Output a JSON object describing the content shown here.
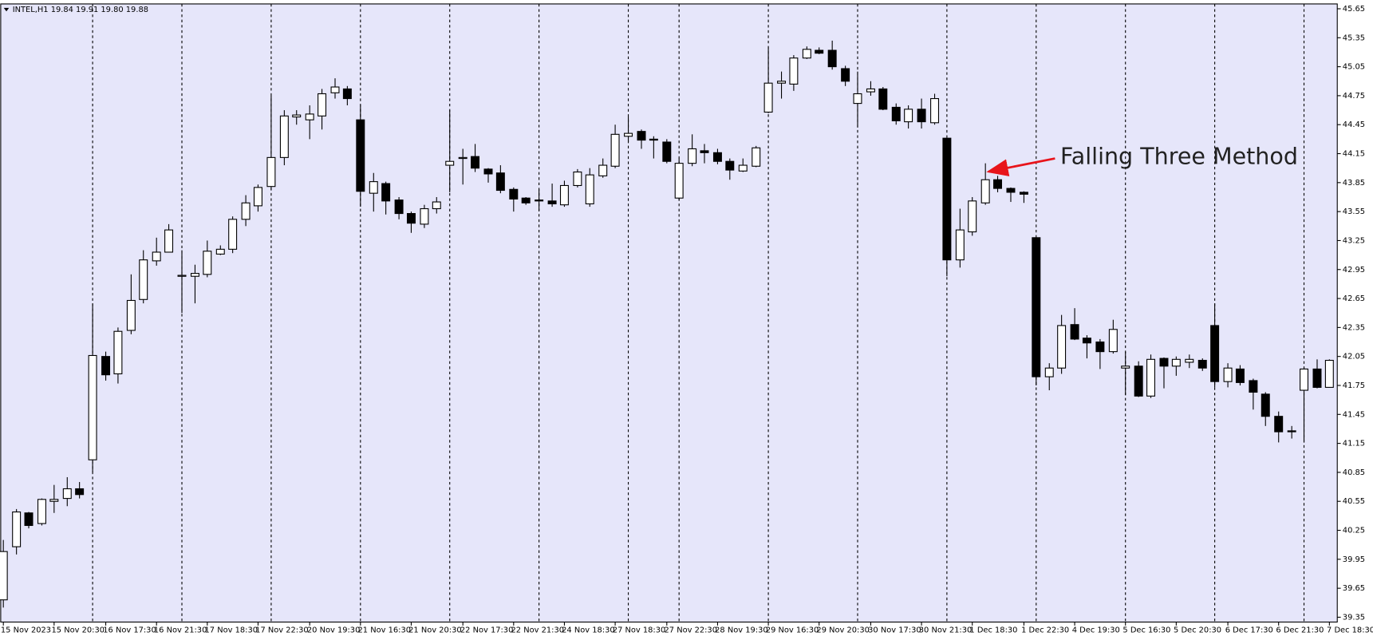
{
  "chart_data": {
    "type": "candlestick",
    "title": "INTEL,H1  19.84 19.91 19.80 19.88",
    "annotation": "Falling Three Method",
    "background": "#e6e6fa",
    "up_color": "#ffffff",
    "down_color": "#000000",
    "annotation_color": "#e8141b",
    "ylim": [
      39.3,
      45.7
    ],
    "yticks": [
      45.65,
      45.35,
      45.05,
      44.75,
      44.45,
      44.15,
      43.85,
      43.55,
      43.25,
      42.95,
      42.65,
      42.35,
      42.05,
      41.75,
      41.45,
      41.15,
      40.85,
      40.55,
      40.25,
      39.95,
      39.65,
      39.35
    ],
    "categories": [
      "15 Nov 2023",
      null,
      null,
      null,
      "15 Nov 20:30",
      null,
      null,
      null,
      "16 Nov 17:30",
      null,
      null,
      null,
      "16 Nov 21:30",
      null,
      null,
      null,
      "17 Nov 18:30",
      null,
      null,
      null,
      "17 Nov 22:30",
      null,
      null,
      null,
      "20 Nov 19:30",
      null,
      null,
      null,
      "21 Nov 16:30",
      null,
      null,
      null,
      "21 Nov 20:30",
      null,
      null,
      null,
      "22 Nov 17:30",
      null,
      null,
      null,
      "22 Nov 21:30",
      null,
      null,
      null,
      "24 Nov 18:30",
      null,
      null,
      null,
      "27 Nov 18:30",
      null,
      null,
      null,
      "27 Nov 22:30",
      null,
      null,
      null,
      "28 Nov 19:30",
      null,
      null,
      null,
      "29 Nov 16:30",
      null,
      null,
      null,
      "29 Nov 20:30",
      null,
      null,
      null,
      "30 Nov 17:30",
      null,
      null,
      null,
      "30 Nov 21:30",
      null,
      null,
      null,
      "1 Dec 18:30",
      null,
      null,
      null,
      "1 Dec 22:30",
      null,
      null,
      null,
      "4 Dec 19:30",
      null,
      null,
      null,
      "5 Dec 16:30",
      null,
      null,
      null,
      "5 Dec 20:30",
      null,
      null,
      null,
      "6 Dec 17:30",
      null,
      null,
      null,
      "6 Dec 21:30",
      null,
      null,
      null,
      "7 Dec 18:30"
    ],
    "open": [
      39.53,
      40.08,
      40.43,
      40.32,
      40.55,
      40.58,
      40.68,
      40.98,
      42.05,
      41.87,
      42.32,
      42.64,
      43.04,
      43.13,
      42.88,
      42.88,
      42.9,
      43.11,
      43.16,
      43.47,
      43.61,
      43.81,
      44.11,
      44.53,
      44.5,
      44.54,
      44.78,
      44.82,
      44.5,
      43.74,
      43.84,
      43.67,
      43.53,
      43.42,
      43.58,
      44.03,
      44.1,
      44.12,
      43.99,
      43.95,
      43.78,
      43.69,
      43.67,
      43.66,
      43.62,
      43.82,
      43.63,
      43.92,
      44.02,
      44.33,
      44.38,
      44.3,
      44.27,
      43.69,
      44.05,
      44.18,
      44.16,
      44.07,
      43.97,
      44.02,
      44.58,
      44.88,
      44.87,
      45.14,
      45.22,
      45.22,
      45.03,
      44.67,
      44.79,
      44.82,
      44.63,
      44.48,
      44.61,
      44.47,
      44.31,
      43.05,
      43.34,
      43.64,
      43.88,
      43.79,
      43.75,
      43.28,
      41.84,
      41.93,
      42.38,
      42.24,
      42.2,
      42.1,
      41.93,
      41.95,
      41.64,
      42.03,
      41.95,
      41.99,
      42.01,
      42.37,
      41.79,
      41.92,
      41.8,
      41.66,
      41.43,
      41.28,
      41.7,
      41.92,
      41.73
    ],
    "high": [
      40.15,
      40.47,
      40.44,
      40.58,
      40.72,
      40.8,
      40.75,
      42.6,
      42.1,
      42.35,
      42.9,
      43.15,
      43.28,
      43.42,
      43.15,
      43.0,
      43.25,
      43.2,
      43.5,
      43.72,
      43.83,
      44.75,
      44.6,
      44.6,
      44.65,
      44.82,
      44.93,
      44.85,
      44.65,
      43.95,
      43.86,
      43.7,
      43.55,
      43.62,
      43.7,
      44.6,
      44.2,
      44.25,
      44.0,
      44.03,
      43.8,
      43.7,
      43.78,
      43.84,
      43.87,
      43.99,
      44.0,
      44.1,
      44.45,
      44.53,
      44.4,
      44.33,
      44.3,
      44.1,
      44.35,
      44.25,
      44.2,
      44.1,
      44.1,
      44.23,
      45.25,
      45.0,
      45.17,
      45.26,
      45.25,
      45.32,
      45.06,
      45.0,
      44.9,
      44.84,
      44.67,
      44.65,
      44.72,
      44.77,
      44.31,
      43.58,
      43.7,
      44.05,
      43.92,
      43.8,
      43.76,
      43.28,
      41.98,
      42.48,
      42.55,
      42.27,
      42.23,
      42.43,
      42.1,
      42.0,
      42.07,
      42.04,
      42.05,
      42.07,
      42.03,
      42.6,
      41.98,
      41.96,
      41.82,
      41.68,
      41.48,
      41.33,
      41.94,
      42.02,
      42.02
    ],
    "low": [
      39.45,
      40.0,
      40.27,
      40.3,
      40.43,
      40.5,
      40.58,
      40.85,
      41.8,
      41.77,
      42.28,
      42.6,
      42.99,
      43.13,
      42.5,
      42.6,
      42.87,
      43.1,
      43.12,
      43.4,
      43.55,
      43.77,
      44.03,
      44.45,
      44.3,
      44.4,
      44.72,
      44.65,
      43.6,
      43.55,
      43.52,
      43.47,
      43.33,
      43.38,
      43.53,
      43.75,
      43.83,
      43.96,
      43.85,
      43.74,
      43.55,
      43.62,
      43.56,
      43.6,
      43.6,
      43.8,
      43.6,
      43.9,
      44.0,
      44.27,
      44.2,
      44.1,
      44.05,
      43.67,
      44.02,
      44.05,
      44.04,
      43.88,
      43.96,
      44.01,
      44.57,
      44.72,
      44.8,
      45.13,
      45.18,
      45.02,
      44.85,
      44.42,
      44.75,
      44.6,
      44.45,
      44.41,
      44.41,
      44.45,
      42.88,
      42.97,
      43.3,
      43.62,
      43.75,
      43.65,
      43.64,
      41.75,
      41.7,
      41.87,
      42.22,
      42.03,
      41.92,
      42.08,
      41.65,
      41.63,
      41.62,
      41.72,
      41.85,
      41.93,
      41.9,
      41.73,
      41.73,
      41.75,
      41.5,
      41.33,
      41.16,
      41.2,
      41.16,
      41.72,
      41.73
    ],
    "close": [
      40.03,
      40.44,
      40.3,
      40.57,
      40.57,
      40.68,
      40.62,
      42.06,
      41.86,
      42.31,
      42.63,
      43.05,
      43.13,
      43.36,
      42.89,
      42.91,
      43.14,
      43.16,
      43.47,
      43.64,
      43.8,
      44.11,
      44.54,
      44.55,
      44.56,
      44.77,
      44.84,
      44.72,
      43.76,
      43.86,
      43.66,
      43.53,
      43.43,
      43.58,
      43.65,
      44.07,
      44.11,
      44.0,
      43.94,
      43.77,
      43.68,
      43.64,
      43.66,
      43.63,
      43.82,
      43.96,
      43.93,
      44.03,
      44.35,
      44.36,
      44.29,
      44.29,
      44.07,
      44.05,
      44.2,
      44.16,
      44.07,
      43.98,
      44.03,
      44.21,
      44.88,
      44.9,
      45.14,
      45.23,
      45.19,
      45.05,
      44.9,
      44.77,
      44.82,
      44.61,
      44.49,
      44.61,
      44.48,
      44.72,
      43.05,
      43.36,
      43.66,
      43.88,
      43.79,
      43.75,
      43.73,
      41.84,
      41.93,
      42.37,
      42.23,
      42.19,
      42.1,
      42.33,
      41.95,
      41.64,
      42.02,
      41.95,
      42.02,
      42.02,
      41.93,
      41.79,
      41.93,
      41.78,
      41.68,
      41.43,
      41.27,
      41.27,
      41.92,
      41.73,
      42.01
    ]
  }
}
